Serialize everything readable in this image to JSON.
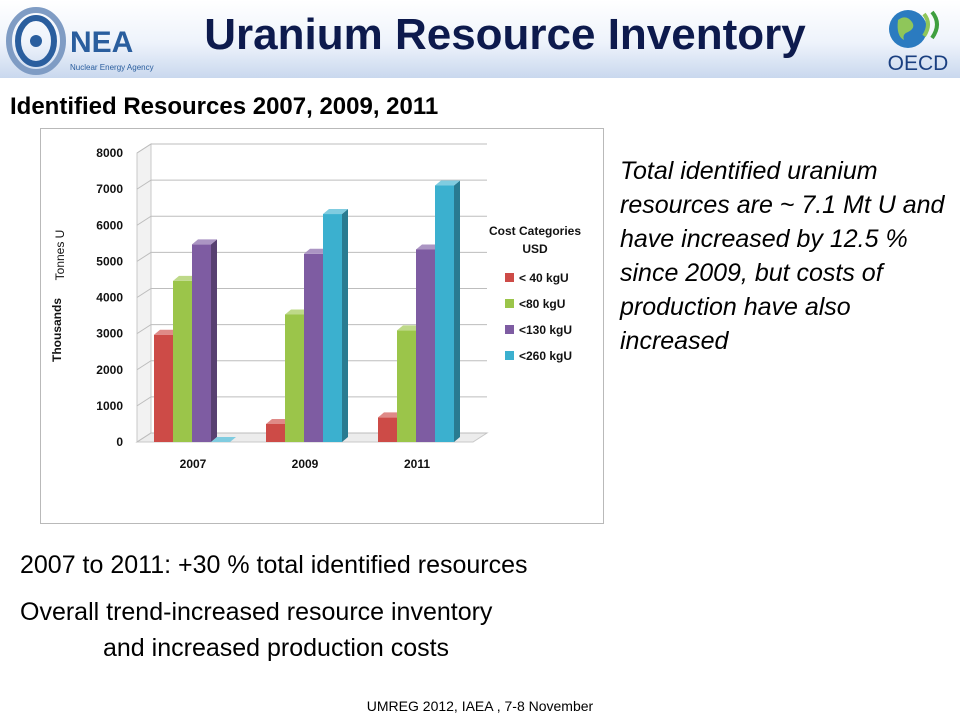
{
  "slide": {
    "title": "Uranium Resource Inventory",
    "subtitle": "Identified Resources 2007, 2009, 2011",
    "side_note": "Total identified uranium resources are ~ 7.1 Mt U and have increased by 12.5 %  since 2009, but costs of production have also increased",
    "bullet_1": "2007 to 2011: +30 % total identified resources",
    "bullet_2_line_1": "Overall trend-increased resource inventory",
    "bullet_2_line_2": "and increased production costs",
    "footer": "UMREG 2012, IAEA , 7-8 November"
  },
  "logos": {
    "nea_wordmark": "NEA",
    "nea_tagline": "Nuclear Energy Agency",
    "oecd_wordmark": "OECD"
  },
  "colors": {
    "title_navy": "#0d1a4d",
    "nea_blue": "#2a5e9e",
    "lt40": "#cd4b47",
    "lt80": "#9bc54a",
    "lt130": "#7e5ca2",
    "lt260": "#3bb0cf"
  },
  "chart_data": {
    "type": "bar",
    "style": "3d-clustered-column",
    "categories": [
      "2007",
      "2009",
      "2011"
    ],
    "series": [
      {
        "name": "< 40 kgU",
        "values": [
          2970,
          500,
          680
        ]
      },
      {
        "name": "<80 kgU",
        "values": [
          4460,
          3530,
          3090
        ]
      },
      {
        "name": "<130 kgU",
        "values": [
          5470,
          5210,
          5330
        ]
      },
      {
        "name": "<260 kgU",
        "values": [
          0,
          6310,
          7100
        ]
      }
    ],
    "ylabel": "Thousands",
    "ylabel_unit": "Tonnes U",
    "yticks": [
      "0",
      "1000",
      "2000",
      "3000",
      "4000",
      "5000",
      "6000",
      "7000",
      "8000"
    ],
    "ylim": [
      0,
      8000
    ],
    "grid": true,
    "legend_title_line_1": "Cost Categories",
    "legend_title_line_2": "USD",
    "legend_position": "right"
  }
}
